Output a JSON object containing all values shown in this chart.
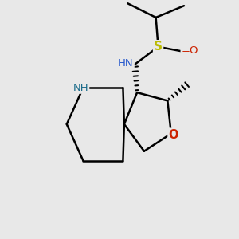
{
  "bg_color": "#e8e8e8",
  "atom_colors": {
    "C": "#000000",
    "N_pip": "#1a6b8a",
    "N_nh": "#2255cc",
    "O": "#cc2200",
    "S": "#bbbb00",
    "H": "#4a9090"
  },
  "figure_size": [
    3.0,
    3.0
  ],
  "dpi": 100
}
